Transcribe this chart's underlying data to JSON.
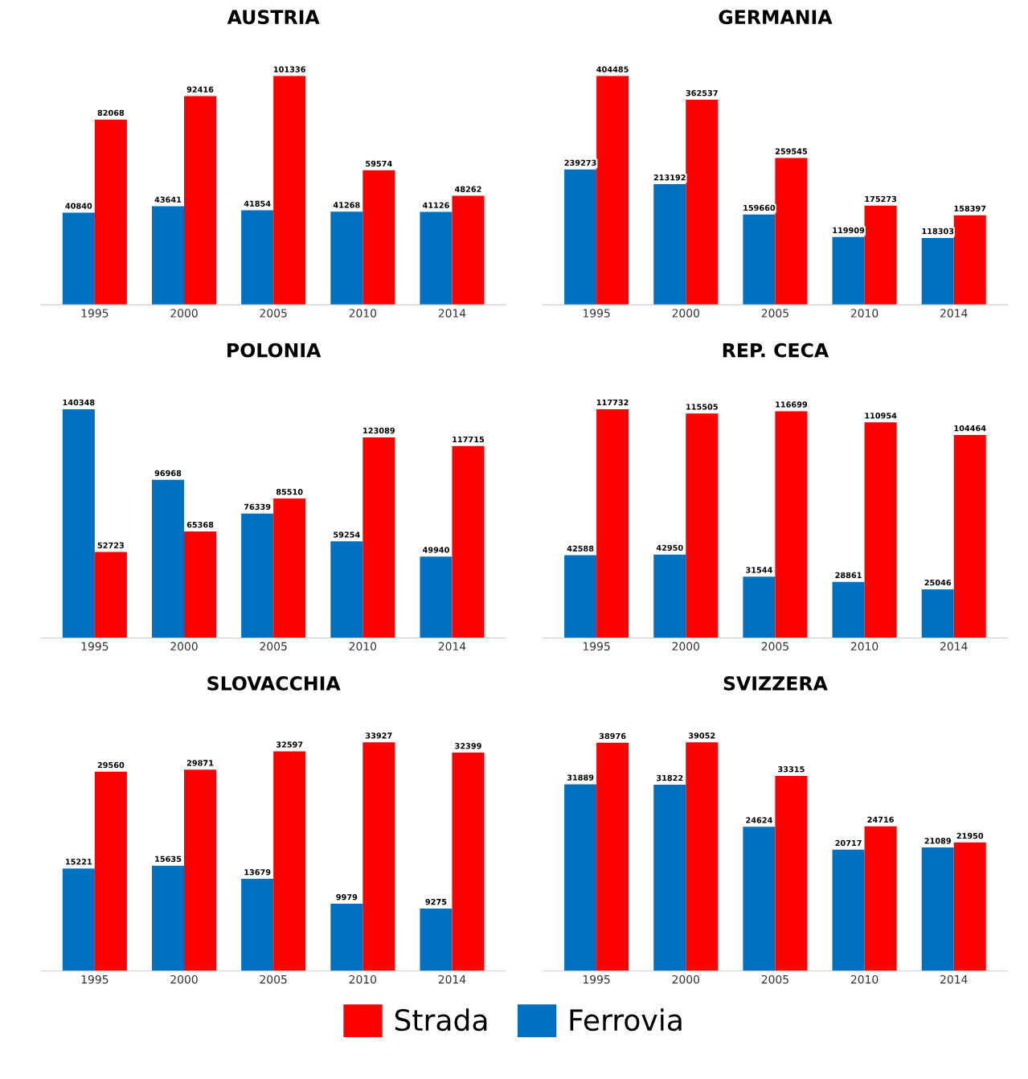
{
  "chart_data": [
    {
      "type": "bar",
      "title": "AUSTRIA",
      "categories": [
        "1995",
        "2000",
        "2005",
        "2010",
        "2014"
      ],
      "data_labels": true,
      "grid": false,
      "legend": "bottom",
      "tick_labels": "x",
      "series": [
        {
          "name": "Ferrovia",
          "color": "#0070c0",
          "values": [
            40840,
            43641,
            41854,
            41268,
            41126
          ]
        },
        {
          "name": "Strada",
          "color": "#ff0000",
          "values": [
            82068,
            92416,
            101336,
            59574,
            48262
          ]
        }
      ]
    },
    {
      "type": "bar",
      "title": "GERMANIA",
      "categories": [
        "1995",
        "2000",
        "2005",
        "2010",
        "2014"
      ],
      "data_labels": true,
      "grid": false,
      "legend": "bottom",
      "tick_labels": "x",
      "series": [
        {
          "name": "Ferrovia",
          "color": "#0070c0",
          "values": [
            239273,
            213192,
            159660,
            119909,
            118303
          ]
        },
        {
          "name": "Strada",
          "color": "#ff0000",
          "values": [
            404485,
            362537,
            259545,
            175273,
            158397
          ]
        }
      ]
    },
    {
      "type": "bar",
      "title": "POLONIA",
      "categories": [
        "1995",
        "2000",
        "2005",
        "2010",
        "2014"
      ],
      "data_labels": true,
      "grid": false,
      "legend": "bottom",
      "tick_labels": "x",
      "series": [
        {
          "name": "Ferrovia",
          "color": "#0070c0",
          "values": [
            140348,
            96968,
            76339,
            59254,
            49940
          ]
        },
        {
          "name": "Strada",
          "color": "#ff0000",
          "values": [
            52723,
            65368,
            85510,
            123089,
            117715
          ]
        }
      ]
    },
    {
      "type": "bar",
      "title": "REP. CECA",
      "categories": [
        "1995",
        "2000",
        "2005",
        "2010",
        "2014"
      ],
      "data_labels": true,
      "grid": false,
      "legend": "bottom",
      "tick_labels": "x",
      "series": [
        {
          "name": "Ferrovia",
          "color": "#0070c0",
          "values": [
            42588,
            42950,
            31544,
            28861,
            25046
          ]
        },
        {
          "name": "Strada",
          "color": "#ff0000",
          "values": [
            117732,
            115505,
            116699,
            110954,
            104464
          ]
        }
      ]
    },
    {
      "type": "bar",
      "title": "SLOVACCHIA",
      "categories": [
        "1995",
        "2000",
        "2005",
        "2010",
        "2014"
      ],
      "data_labels": true,
      "grid": false,
      "legend": "bottom",
      "tick_labels": "x",
      "series": [
        {
          "name": "Ferrovia",
          "color": "#0070c0",
          "values": [
            15221,
            15635,
            13679,
            9979,
            9275
          ]
        },
        {
          "name": "Strada",
          "color": "#ff0000",
          "values": [
            29560,
            29871,
            32597,
            33927,
            32399
          ]
        }
      ]
    },
    {
      "type": "bar",
      "title": "SVIZZERA",
      "categories": [
        "1995",
        "2000",
        "2005",
        "2010",
        "2014"
      ],
      "data_labels": true,
      "grid": false,
      "legend": "bottom",
      "tick_labels": "x",
      "series": [
        {
          "name": "Ferrovia",
          "color": "#0070c0",
          "values": [
            31889,
            31822,
            24624,
            20717,
            21089
          ]
        },
        {
          "name": "Strada",
          "color": "#ff0000",
          "values": [
            38976,
            39052,
            33315,
            24716,
            21950
          ]
        }
      ]
    }
  ]
}
